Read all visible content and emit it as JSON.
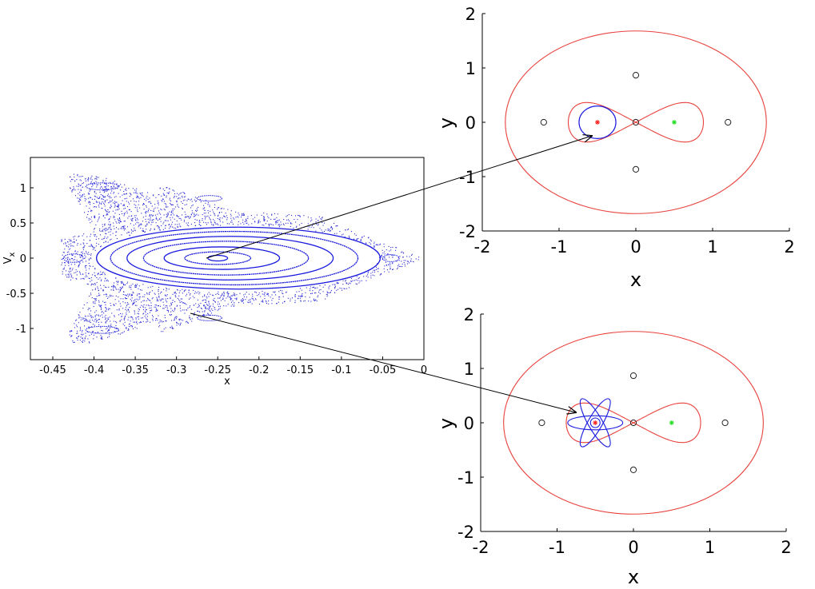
{
  "colors": {
    "orbit": "#1a1adf",
    "section_points": "#2a2ad6",
    "boundary": "#e8413c",
    "primary_mass": "#ff2020",
    "secondary_mass": "#22dd22",
    "lagrange_points": "#222222",
    "arrow": "#000000"
  },
  "chart_data": [
    {
      "type": "scatter",
      "panel": "poincare-section",
      "xlabel": "x",
      "ylabel": "V",
      "ylabel_subscript": "x",
      "xlim": [
        -0.455,
        0.0
      ],
      "ylim": [
        -1.4,
        1.4
      ],
      "xticks": [
        -0.45,
        -0.4,
        -0.35,
        -0.3,
        -0.25,
        -0.2,
        -0.15,
        -0.1,
        -0.05,
        0
      ],
      "xtick_labels": [
        "-0.45",
        "-0.4",
        "-0.35",
        "-0.3",
        "-0.25",
        "-0.2",
        "-0.15",
        "-0.1",
        "-0.05",
        "0"
      ],
      "yticks": [
        1,
        0.5,
        0,
        -0.5,
        -1
      ],
      "ytick_labels": [
        "1",
        "0.5",
        "0",
        "-0.5",
        "-1"
      ],
      "regular_orbit_center": [
        -0.25,
        0.0
      ],
      "invariant_curves": [
        {
          "cx": -0.25,
          "cy": 0.0,
          "ax": 0.012,
          "ay": 0.04
        },
        {
          "cx": -0.25,
          "cy": 0.0,
          "ax": 0.04,
          "ay": 0.09
        },
        {
          "cx": -0.245,
          "cy": 0.0,
          "ax": 0.07,
          "ay": 0.16
        },
        {
          "cx": -0.24,
          "cy": 0.0,
          "ax": 0.1,
          "ay": 0.24
        },
        {
          "cx": -0.235,
          "cy": 0.0,
          "ax": 0.125,
          "ay": 0.31
        },
        {
          "cx": -0.23,
          "cy": 0.0,
          "ax": 0.15,
          "ay": 0.38
        },
        {
          "cx": -0.225,
          "cy": 0.0,
          "ax": 0.172,
          "ay": 0.44
        }
      ],
      "islands": [
        {
          "cx": -0.425,
          "cy": 0.0,
          "ax": 0.012,
          "ay": 0.06
        },
        {
          "cx": -0.04,
          "cy": 0.0,
          "ax": 0.01,
          "ay": 0.05
        },
        {
          "cx": -0.39,
          "cy": 1.02,
          "ax": 0.02,
          "ay": 0.05
        },
        {
          "cx": -0.39,
          "cy": -1.02,
          "ax": 0.02,
          "ay": 0.05
        },
        {
          "cx": -0.26,
          "cy": 0.85,
          "ax": 0.015,
          "ay": 0.04
        },
        {
          "cx": -0.26,
          "cy": -0.85,
          "ax": 0.015,
          "ay": 0.04
        }
      ]
    },
    {
      "type": "line",
      "panel": "orbit-periodic",
      "xlabel": "x",
      "ylabel": "y",
      "xlim": [
        -2,
        2
      ],
      "ylim": [
        -2,
        2
      ],
      "xticks": [
        -2,
        -1,
        0,
        1,
        2
      ],
      "xtick_labels": [
        "-2",
        "-1",
        "0",
        "1",
        "2"
      ],
      "yticks": [
        2,
        1,
        0,
        -1,
        -2
      ],
      "ytick_labels": [
        "2",
        "1",
        "0",
        "-1",
        "-2"
      ],
      "primary": [
        -0.5,
        0
      ],
      "secondary": [
        0.5,
        0
      ],
      "lagrange_points": [
        [
          0,
          0.866
        ],
        [
          0,
          -0.866
        ],
        [
          -1.2,
          0
        ],
        [
          1.2,
          0
        ],
        [
          0,
          0
        ]
      ],
      "zvc_outer": {
        "cx": 0,
        "cy": 0,
        "rx": 1.7,
        "ry": 1.68
      },
      "zvc_lobe_half_width": 0.88,
      "zvc_lobe_half_height": 0.38,
      "orbit": {
        "kind": "ellipse",
        "cx": -0.5,
        "cy": 0,
        "rx": 0.24,
        "ry": 0.3
      }
    },
    {
      "type": "line",
      "panel": "orbit-quasi-periodic",
      "xlabel": "x",
      "ylabel": "y",
      "xlim": [
        -2,
        2
      ],
      "ylim": [
        -2,
        2
      ],
      "xticks": [
        -2,
        -1,
        0,
        1,
        2
      ],
      "xtick_labels": [
        "-2",
        "-1",
        "0",
        "1",
        "2"
      ],
      "yticks": [
        2,
        1,
        0,
        -1,
        -2
      ],
      "ytick_labels": [
        "2",
        "1",
        "0",
        "-1",
        "-2"
      ],
      "primary": [
        -0.5,
        0
      ],
      "secondary": [
        0.5,
        0
      ],
      "lagrange_points": [
        [
          0,
          0.866
        ],
        [
          0,
          -0.866
        ],
        [
          -1.2,
          0
        ],
        [
          1.2,
          0
        ],
        [
          0,
          0
        ]
      ],
      "zvc_outer": {
        "cx": 0,
        "cy": 0,
        "rx": 1.7,
        "ry": 1.68
      },
      "zvc_lobe_half_width": 0.88,
      "zvc_lobe_half_height": 0.38,
      "orbit": {
        "kind": "rosette",
        "cx": -0.5,
        "cy": 0,
        "rx": 0.36,
        "ry": 0.13,
        "angles_deg": [
          0,
          60,
          120
        ]
      }
    }
  ]
}
